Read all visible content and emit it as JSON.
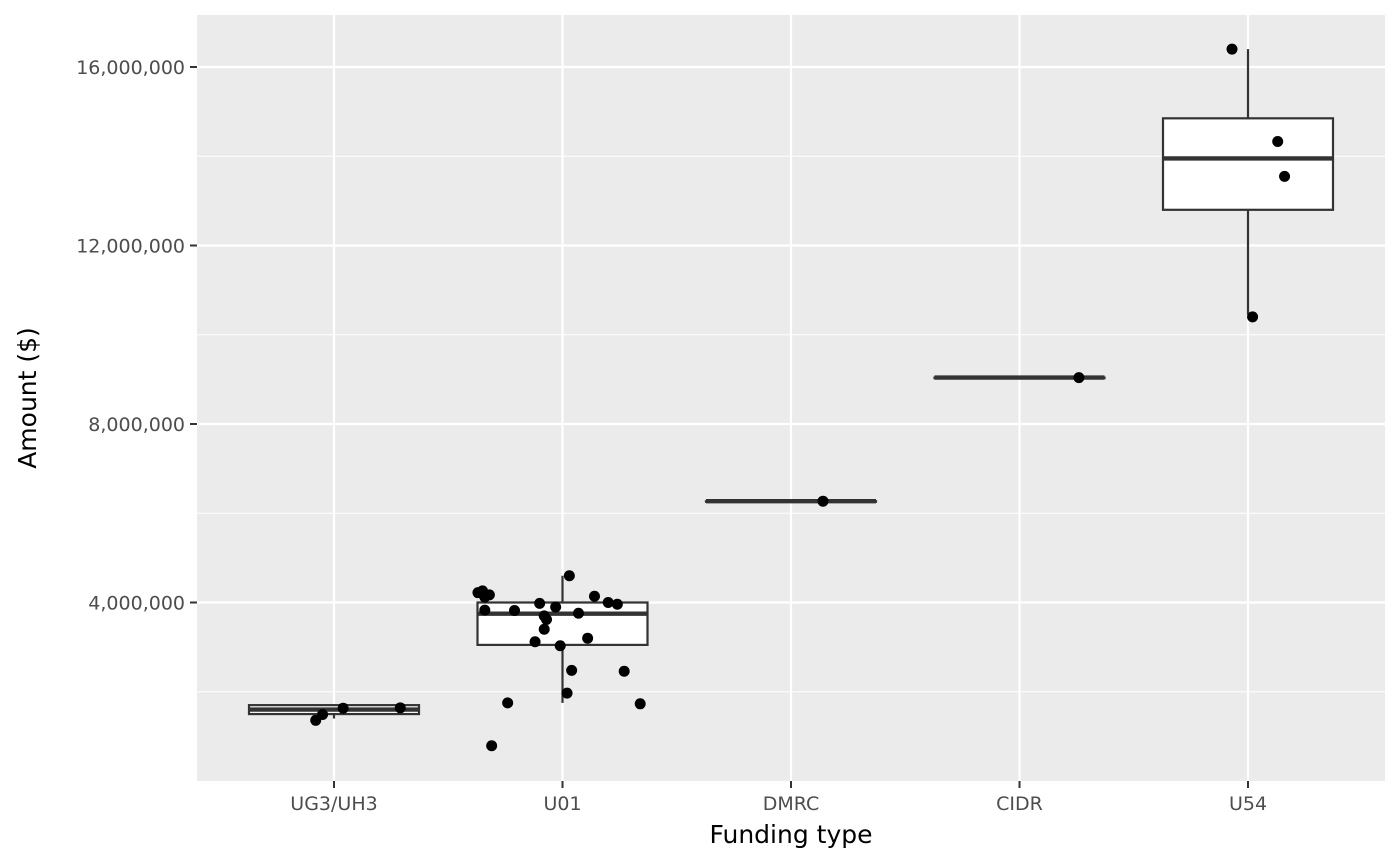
{
  "chart_data": {
    "type": "boxplot",
    "xlabel": "Funding type",
    "ylabel": "Amount ($)",
    "ylim": [
      0,
      17200000
    ],
    "y_ticks": [
      {
        "value": 4000000,
        "label": "4,000,000"
      },
      {
        "value": 8000000,
        "label": "8,000,000"
      },
      {
        "value": 12000000,
        "label": "12,000,000"
      },
      {
        "value": 16000000,
        "label": "16,000,000"
      }
    ],
    "categories": [
      "UG3/UH3",
      "U01",
      "DMRC",
      "CIDR",
      "U54"
    ],
    "boxes": [
      {
        "category": "UG3/UH3",
        "min": 1400000,
        "q1": 1500000,
        "median": 1600000,
        "q3": 1700000,
        "max": 1700000
      },
      {
        "category": "U01",
        "min": 1750000,
        "q1": 3050000,
        "median": 3750000,
        "q3": 4000000,
        "max": 4600000
      },
      {
        "category": "DMRC",
        "min": 6270000,
        "q1": 6270000,
        "median": 6270000,
        "q3": 6270000,
        "max": 6270000
      },
      {
        "category": "CIDR",
        "min": 9040000,
        "q1": 9040000,
        "median": 9040000,
        "q3": 9040000,
        "max": 9040000
      },
      {
        "category": "U54",
        "min": 10450000,
        "q1": 12800000,
        "median": 13950000,
        "q3": 14850000,
        "max": 16400000
      }
    ],
    "points": [
      {
        "category": "UG3/UH3",
        "jitter": -0.08,
        "y": 1360000
      },
      {
        "category": "UG3/UH3",
        "jitter": -0.05,
        "y": 1490000
      },
      {
        "category": "UG3/UH3",
        "jitter": 0.04,
        "y": 1630000
      },
      {
        "category": "UG3/UH3",
        "jitter": 0.29,
        "y": 1640000
      },
      {
        "category": "U01",
        "jitter": -0.37,
        "y": 4220000
      },
      {
        "category": "U01",
        "jitter": -0.35,
        "y": 4260000
      },
      {
        "category": "U01",
        "jitter": -0.34,
        "y": 4120000
      },
      {
        "category": "U01",
        "jitter": -0.32,
        "y": 4170000
      },
      {
        "category": "U01",
        "jitter": -0.34,
        "y": 3830000
      },
      {
        "category": "U01",
        "jitter": -0.21,
        "y": 3820000
      },
      {
        "category": "U01",
        "jitter": -0.1,
        "y": 3980000
      },
      {
        "category": "U01",
        "jitter": -0.03,
        "y": 3900000
      },
      {
        "category": "U01",
        "jitter": -0.08,
        "y": 3700000
      },
      {
        "category": "U01",
        "jitter": -0.07,
        "y": 3620000
      },
      {
        "category": "U01",
        "jitter": -0.08,
        "y": 3400000
      },
      {
        "category": "U01",
        "jitter": -0.12,
        "y": 3120000
      },
      {
        "category": "U01",
        "jitter": -0.01,
        "y": 3030000
      },
      {
        "category": "U01",
        "jitter": 0.07,
        "y": 3760000
      },
      {
        "category": "U01",
        "jitter": 0.11,
        "y": 3200000
      },
      {
        "category": "U01",
        "jitter": 0.14,
        "y": 4140000
      },
      {
        "category": "U01",
        "jitter": 0.2,
        "y": 4000000
      },
      {
        "category": "U01",
        "jitter": 0.24,
        "y": 3960000
      },
      {
        "category": "U01",
        "jitter": 0.03,
        "y": 4600000
      },
      {
        "category": "U01",
        "jitter": 0.04,
        "y": 2480000
      },
      {
        "category": "U01",
        "jitter": 0.27,
        "y": 2460000
      },
      {
        "category": "U01",
        "jitter": 0.02,
        "y": 1970000
      },
      {
        "category": "U01",
        "jitter": -0.24,
        "y": 1750000
      },
      {
        "category": "U01",
        "jitter": 0.34,
        "y": 1730000
      },
      {
        "category": "U01",
        "jitter": -0.31,
        "y": 790000
      },
      {
        "category": "DMRC",
        "jitter": 0.14,
        "y": 6270000
      },
      {
        "category": "CIDR",
        "jitter": 0.26,
        "y": 9040000
      },
      {
        "category": "U54",
        "jitter": -0.07,
        "y": 16400000
      },
      {
        "category": "U54",
        "jitter": 0.13,
        "y": 14330000
      },
      {
        "category": "U54",
        "jitter": 0.16,
        "y": 13550000
      },
      {
        "category": "U54",
        "jitter": 0.02,
        "y": 10400000
      }
    ],
    "grid": true,
    "legend": "none",
    "colors": {
      "panel": "#ebebeb",
      "grid": "#ffffff",
      "box_fill": "#ffffff",
      "box_line": "#333333",
      "point": "#000000"
    }
  }
}
